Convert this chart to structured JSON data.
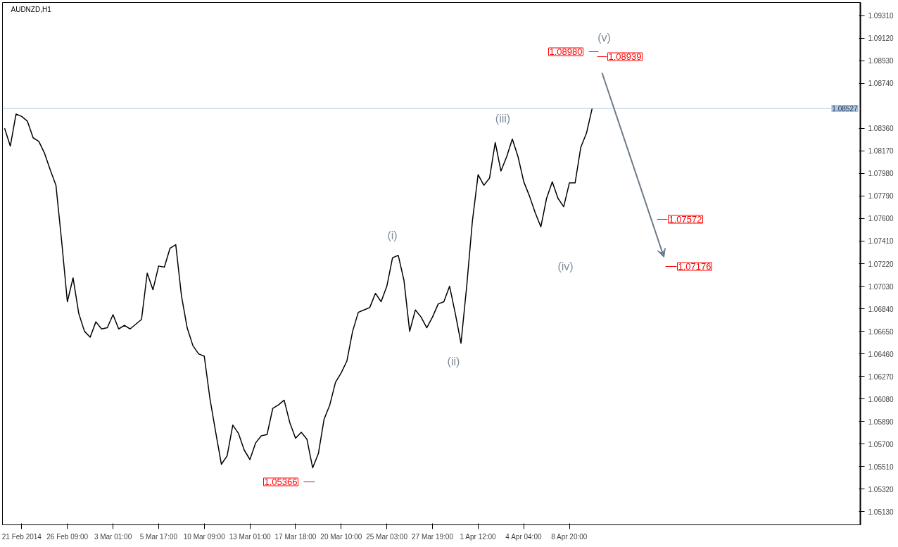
{
  "chart_data": {
    "type": "line",
    "title": "AUDNZD,H1",
    "categories": [
      null,
      null,
      null,
      "21 Feb 2014",
      null,
      null,
      null,
      null,
      null,
      null,
      null,
      "26 Feb 09:00",
      null,
      null,
      null,
      null,
      null,
      null,
      null,
      "3 Mar 01:00",
      null,
      null,
      null,
      null,
      null,
      null,
      null,
      "5 Mar 17:00",
      null,
      null,
      null,
      null,
      null,
      null,
      null,
      "10 Mar 09:00",
      null,
      null,
      null,
      null,
      null,
      null,
      null,
      "13 Mar 01:00",
      null,
      null,
      null,
      null,
      null,
      null,
      null,
      "17 Mar 18:00",
      null,
      null,
      null,
      null,
      null,
      null,
      null,
      "20 Mar 10:00",
      null,
      null,
      null,
      null,
      null,
      null,
      null,
      "25 Mar 03:00",
      null,
      null,
      null,
      null,
      null,
      null,
      null,
      "27 Mar 19:00",
      null,
      null,
      null,
      null,
      null,
      null,
      null,
      "1 Apr 12:00",
      null,
      null,
      null,
      null,
      null,
      null,
      null,
      "4 Apr 04:00",
      null,
      null,
      null,
      null,
      null,
      null,
      null,
      "8 Apr 20:00",
      null,
      null,
      null,
      null,
      null,
      null,
      null,
      null,
      null,
      null,
      null,
      null,
      null,
      null,
      null,
      null,
      null,
      null,
      null,
      null,
      null,
      null,
      null,
      null,
      null,
      null,
      null,
      null,
      null,
      null,
      null,
      null,
      null,
      null,
      null,
      null,
      null,
      null,
      null,
      null,
      null,
      null,
      null,
      null,
      null,
      null,
      null,
      null,
      null,
      null,
      null
    ],
    "series": [
      {
        "color": "#000000",
        "values": [
          1.0836,
          1.0821,
          1.0848,
          1.0846,
          1.0842,
          1.0828,
          1.0825,
          1.0815,
          1.0801,
          1.0788,
          1.0741,
          1.069,
          1.071,
          1.068,
          1.0665,
          1.066,
          1.0673,
          1.0667,
          1.0668,
          1.0679,
          1.0667,
          1.067,
          1.0667,
          1.0671,
          1.0675,
          1.0714,
          1.07,
          1.072,
          1.0719,
          1.0735,
          1.0738,
          1.0695,
          1.0668,
          1.0653,
          1.0646,
          1.0644,
          1.0608,
          1.058,
          1.0553,
          1.056,
          1.0586,
          1.0579,
          1.0565,
          1.0557,
          1.0571,
          1.0577,
          1.0578,
          1.06,
          1.0603,
          1.0607,
          1.0588,
          1.0575,
          1.058,
          1.0574,
          1.055,
          1.0562,
          1.0591,
          1.0603,
          1.0622,
          1.063,
          1.064,
          1.0665,
          1.0681,
          1.0683,
          1.0685,
          1.0697,
          1.069,
          1.0703,
          1.0727,
          1.0729,
          1.0708,
          1.0665,
          1.0683,
          1.0677,
          1.0668,
          1.0677,
          1.0688,
          1.069,
          1.0703,
          1.068,
          1.0655,
          1.0703,
          1.0758,
          1.0797,
          1.0788,
          1.0794,
          1.0824,
          1.08,
          1.0812,
          1.0827,
          1.0812,
          1.0791,
          1.0779,
          1.0765,
          1.0753,
          1.0777,
          1.0791,
          1.0777,
          1.077,
          1.079,
          1.079,
          1.082,
          1.0832,
          1.0853,
          null,
          null,
          null,
          null,
          null,
          null,
          null,
          null,
          null,
          null,
          null,
          null,
          null,
          null,
          null,
          null,
          null,
          null,
          null,
          null,
          null,
          null,
          null,
          null,
          null,
          null,
          null,
          null,
          null,
          null,
          null,
          null,
          null,
          null,
          null,
          null,
          null,
          null,
          null,
          null,
          null,
          null,
          null,
          null,
          null,
          null,
          null
        ]
      }
    ],
    "ylim": [
      1.0502,
      1.0942
    ],
    "yticks": [
      {
        "value": 1.0513,
        "label": "1.05130"
      },
      {
        "value": 1.0532,
        "label": "1.05320"
      },
      {
        "value": 1.0551,
        "label": "1.05510"
      },
      {
        "value": 1.057,
        "label": "1.05700"
      },
      {
        "value": 1.0589,
        "label": "1.05890"
      },
      {
        "value": 1.0608,
        "label": "1.06080"
      },
      {
        "value": 1.0627,
        "label": "1.06270"
      },
      {
        "value": 1.0646,
        "label": "1.06460"
      },
      {
        "value": 1.0665,
        "label": "1.06650"
      },
      {
        "value": 1.0684,
        "label": "1.06840"
      },
      {
        "value": 1.0703,
        "label": "1.07030"
      },
      {
        "value": 1.0722,
        "label": "1.07220"
      },
      {
        "value": 1.0741,
        "label": "1.07410"
      },
      {
        "value": 1.076,
        "label": "1.07600"
      },
      {
        "value": 1.0779,
        "label": "1.07790"
      },
      {
        "value": 1.0798,
        "label": "1.07980"
      },
      {
        "value": 1.0817,
        "label": "1.08170"
      },
      {
        "value": 1.0836,
        "label": "1.08360"
      },
      {
        "value": 1.0874,
        "label": "1.08740"
      },
      {
        "value": 1.0893,
        "label": "1.08930"
      },
      {
        "value": 1.0912,
        "label": "1.09120"
      },
      {
        "value": 1.0931,
        "label": "1.09310"
      }
    ],
    "ref_lines": [
      {
        "axis": "y",
        "value": 1.08527,
        "label": "1.08527",
        "color": "#b0c4de"
      }
    ],
    "annotations": [
      "(i)",
      "(ii)",
      "(iii)",
      "(iv)",
      "(v)",
      "1.08980",
      "1.08939",
      "1.07572",
      "1.07176",
      "1.05366"
    ],
    "grid": false
  }
}
